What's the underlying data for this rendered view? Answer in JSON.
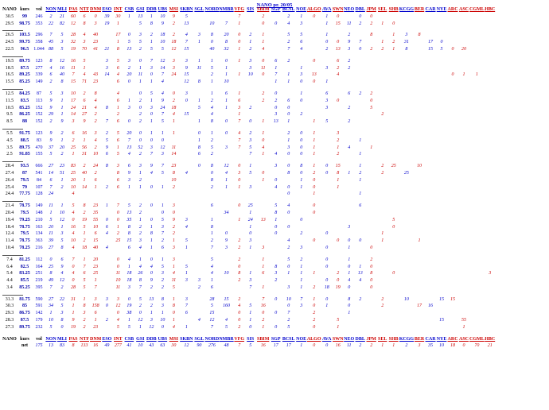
{
  "title": "NANO pr. 20/05",
  "headers": [
    "NANO",
    "kurs",
    "vol",
    "NON",
    "MLI",
    "PAS",
    "NTF",
    "DNM",
    "ESO",
    "INT",
    "CSB",
    "GSI",
    "DDB",
    "UBS",
    "MSI",
    "SKBN",
    "SGL",
    "NORD",
    "NMBR",
    "VFG",
    "SIS",
    "SBIM",
    "SGP",
    "BCSL",
    "NOE",
    "ALGO",
    "AVA",
    "SWN",
    "NEO",
    "DBL",
    "JPM",
    "SEL",
    "SHB",
    "KCGG",
    "BER",
    "CAR",
    "NYE",
    "ARC",
    "ASC",
    "CGML",
    "HBC"
  ],
  "header_colors": [
    "blk",
    "blk",
    "blk",
    "blue",
    "blue",
    "red",
    "red",
    "red",
    "blue",
    "red",
    "blue",
    "blue",
    "blue",
    "blue",
    "red",
    "blue",
    "blue",
    "blue",
    "blue",
    "red",
    "blue",
    "red",
    "blue",
    "blue",
    "blue",
    "red",
    "blue",
    "red",
    "blue",
    "blue",
    "red",
    "red",
    "red",
    "blue",
    "red",
    "blue",
    "blue",
    "red",
    "red",
    "red",
    "red"
  ],
  "groups": [
    [
      [
        "30.5",
        "99",
        "246",
        "2",
        "21",
        "60",
        "6",
        "0",
        "39",
        "30",
        "1",
        "13",
        "1",
        "10",
        "9",
        "5",
        "",
        "",
        "",
        "7",
        "",
        "2",
        "",
        "2",
        "1",
        "0",
        "1",
        "0",
        "",
        "0",
        "0"
      ],
      [
        "29.5",
        "98.75",
        "353",
        "22",
        "82",
        "12",
        "8",
        "3",
        "19",
        "1",
        "",
        "5",
        "8",
        "9",
        "2",
        "13",
        "",
        "10",
        "7",
        "1",
        "",
        "0",
        "0",
        "4",
        "3",
        "",
        "1",
        "15",
        "11",
        "2",
        "2",
        "1",
        "0"
      ]
    ],
    [
      [
        "26.5",
        "103.5",
        "296",
        "7",
        "5",
        "28",
        "4",
        "40",
        "",
        "17",
        "0",
        "3",
        "2",
        "18",
        "2",
        "4",
        "3",
        "8",
        "20",
        "0",
        "2",
        "1",
        "",
        "5",
        "5",
        "",
        "1",
        "",
        "2",
        "",
        "8",
        "",
        "1",
        "3",
        "8"
      ],
      [
        "24.5",
        "99.75",
        "358",
        "45",
        "3",
        "32",
        "3",
        "23",
        "",
        "1",
        "5",
        "5",
        "1",
        "10",
        "18",
        "7",
        "1",
        "0",
        "8",
        "0",
        "1",
        "1",
        "",
        "2",
        "6",
        "",
        "0",
        "0",
        "9",
        "7",
        "",
        "1",
        "2",
        "31",
        "",
        "17",
        "0"
      ],
      [
        "22.5",
        "96.5",
        "1.044",
        "88",
        "5",
        "19",
        "70",
        "41",
        "21",
        "8",
        "13",
        "2",
        "5",
        "5",
        "12",
        "15",
        "",
        "40",
        "32",
        "1",
        "2",
        "4",
        "",
        "7",
        "4",
        "",
        "2",
        "13",
        "3",
        "0",
        "2",
        "2",
        "1",
        "8",
        "",
        "15",
        "5",
        "0",
        "20"
      ]
    ],
    [
      [
        "19.5",
        "89.75",
        "123",
        "8",
        "12",
        "16",
        "5",
        "",
        "3",
        "5",
        "3",
        "0",
        "7",
        "12",
        "3",
        "3",
        "1",
        "1",
        "0",
        "1",
        "3",
        "0",
        "6",
        "2",
        "",
        "0",
        "",
        "6",
        "2"
      ],
      [
        "18.5",
        "87.5",
        "277",
        "4",
        "16",
        "11",
        "1",
        "",
        "3",
        "6",
        "2",
        "1",
        "3",
        "14",
        "3",
        "9",
        "11",
        "5",
        "1",
        "",
        "3",
        "11",
        "1",
        "",
        "1",
        "",
        "3",
        "2",
        "2"
      ],
      [
        "16.5",
        "89.25",
        "339",
        "6",
        "40",
        "7",
        "4",
        "43",
        "14",
        "4",
        "20",
        "11",
        "0",
        "7",
        "24",
        "15",
        "",
        "2",
        "1",
        "1",
        "10",
        "0",
        "7",
        "1",
        "3",
        "13",
        "",
        "4",
        "",
        "",
        "",
        "",
        "",
        "",
        "",
        "",
        "",
        "0",
        "1",
        "1"
      ],
      [
        "15.5",
        "85.25",
        "149",
        "2",
        "8",
        "15",
        "71",
        "23",
        "",
        "6",
        "0",
        "1",
        "1",
        "4",
        "",
        "12",
        "8",
        "1",
        "10",
        "",
        "",
        "",
        "1",
        "1",
        "0",
        "0",
        "1"
      ]
    ],
    [
      [
        "12.5",
        "84.25",
        "87",
        "5",
        "3",
        "10",
        "2",
        "8",
        "",
        "4",
        "",
        "0",
        "5",
        "4",
        "0",
        "3",
        "",
        "1",
        "6",
        "1",
        "",
        "2",
        "0",
        "",
        "1",
        "",
        "6",
        "",
        "6",
        "2",
        "2"
      ],
      [
        "11.5",
        "83.5",
        "113",
        "9",
        "1",
        "17",
        "6",
        "4",
        "",
        "6",
        "1",
        "2",
        "1",
        "9",
        "2",
        "0",
        "1",
        "2",
        "1",
        "6",
        "",
        "2",
        "2",
        "6",
        "0",
        "",
        "3",
        "0",
        "",
        "",
        "0"
      ],
      [
        "10.5",
        "85.25",
        "152",
        "9",
        "1",
        "24",
        "21",
        "4",
        "8",
        "1",
        "3",
        "0",
        "3",
        "24",
        "18",
        "",
        "5",
        "4",
        "1",
        "3",
        "2",
        "",
        "0",
        "0",
        "",
        "",
        "3",
        "",
        "2",
        "",
        "5"
      ],
      [
        "9.5",
        "86.25",
        "152",
        "29",
        "1",
        "14",
        "27",
        "2",
        "",
        "2",
        "",
        "2",
        "0",
        "7",
        "4",
        "15",
        "",
        "4",
        "",
        "1",
        "",
        "",
        "3",
        "0",
        "2",
        "",
        "",
        "",
        "",
        "",
        "",
        "2"
      ],
      [
        "8.5",
        "88",
        "152",
        "2",
        "9",
        "3",
        "9",
        "2",
        "7",
        "6",
        "0",
        "2",
        "1",
        "5",
        "1",
        "",
        "1",
        "8",
        "0",
        "7",
        "0",
        "1",
        "13",
        "1",
        "",
        "1",
        "5",
        "",
        "2"
      ]
    ],
    [
      [
        "5.5",
        "91.75",
        "123",
        "9",
        "2",
        "6",
        "16",
        "3",
        "2",
        "5",
        "20",
        "0",
        "1",
        "1",
        "1",
        "",
        "0",
        "1",
        "0",
        "4",
        "2",
        "1",
        "",
        "2",
        "0",
        "1",
        "",
        "3"
      ],
      [
        "4.5",
        "88.5",
        "83",
        "9",
        "1",
        "2",
        "1",
        "4",
        "5",
        "6",
        "7",
        "0",
        "0",
        "0",
        "",
        "",
        "1",
        "2",
        "",
        "7",
        "3",
        "0",
        "",
        "1",
        "0",
        "1",
        "",
        "2",
        "",
        "1"
      ],
      [
        "3.5",
        "89.75",
        "470",
        "37",
        "20",
        "25",
        "56",
        "2",
        "9",
        "1",
        "13",
        "52",
        "3",
        "12",
        "11",
        "",
        "8",
        "5",
        "3",
        "7",
        "5",
        "4",
        "",
        "3",
        "0",
        "1",
        "",
        "1",
        "4",
        "",
        "1"
      ],
      [
        "2.5",
        "91.85",
        "155",
        "5",
        "2",
        "1",
        "31",
        "10",
        "6",
        "5",
        "4",
        "2",
        "7",
        "3",
        "14",
        "",
        "6",
        "2",
        "",
        "",
        "7",
        "1",
        "4",
        "0",
        "0",
        "1",
        "",
        "2",
        "",
        "1"
      ]
    ],
    [
      [
        "28.4",
        "93.5",
        "666",
        "27",
        "23",
        "83",
        "2",
        "24",
        "8",
        "3",
        "6",
        "3",
        "9",
        "7",
        "23",
        "",
        "0",
        "8",
        "12",
        "0",
        "1",
        "",
        "3",
        "0",
        "8",
        "1",
        "0",
        "15",
        "",
        "1",
        "",
        "2",
        "25",
        "",
        "10"
      ],
      [
        "27.4",
        "87",
        "541",
        "14",
        "51",
        "25",
        "40",
        "2",
        "",
        "8",
        "9",
        "1",
        "4",
        "5",
        "8",
        "4",
        "",
        "0",
        "4",
        "3",
        "5",
        "0",
        "",
        "8",
        "0",
        "2",
        "0",
        "8",
        "1",
        "2",
        "",
        "2",
        "",
        "25"
      ],
      [
        "26.4",
        "79.5",
        "84",
        "6",
        "1",
        "20",
        "1",
        "6",
        "",
        "6",
        "3",
        "2",
        "",
        "",
        "10",
        "",
        "",
        "8",
        "1",
        "0",
        "",
        "1",
        "0",
        "",
        "1",
        "0",
        "",
        "1",
        "",
        "1"
      ],
      [
        "25.4",
        "79",
        "107",
        "7",
        "2",
        "10",
        "14",
        "1",
        "2",
        "6",
        "1",
        "1",
        "0",
        "1",
        "2",
        "",
        "",
        "2",
        "1",
        "1",
        "3",
        "",
        "4",
        "0",
        "1",
        "0",
        "",
        "1"
      ],
      [
        "24.4",
        "77.75",
        "128",
        "24",
        "",
        "4",
        "",
        "",
        "",
        "",
        "",
        "",
        "",
        "",
        "",
        "",
        "",
        "",
        "",
        "",
        "",
        "",
        "",
        "0",
        "",
        "1",
        "",
        "",
        "",
        "1"
      ]
    ],
    [
      [
        "21.4",
        "78.75",
        "149",
        "11",
        "1",
        "5",
        "8",
        "23",
        "1",
        "7",
        "5",
        "2",
        "0",
        "1",
        "3",
        "",
        "",
        "6",
        "",
        "0",
        "25",
        "",
        "5",
        "4",
        "",
        "0",
        "",
        "",
        "",
        "6"
      ],
      [
        "20.4",
        "79.5",
        "148",
        "1",
        "10",
        "4",
        "2",
        "35",
        "",
        "0",
        "13",
        "2",
        "",
        "0",
        "0",
        "",
        "",
        "",
        "34",
        "",
        "1",
        "",
        "8",
        "0",
        "",
        "0"
      ],
      [
        "19.4",
        "79.25",
        "210",
        "5",
        "12",
        "0",
        "19",
        "55",
        "0",
        "0",
        "35",
        "1",
        "0",
        "5",
        "9",
        "3",
        "",
        "1",
        "",
        "1",
        "24",
        "13",
        "1",
        "",
        "0",
        "",
        "",
        "",
        "",
        "",
        "",
        "",
        "5"
      ],
      [
        "18.4",
        "78.75",
        "163",
        "20",
        "1",
        "16",
        "5",
        "10",
        "6",
        "1",
        "8",
        "2",
        "1",
        "3",
        "2",
        "4",
        "",
        "8",
        "",
        "",
        "1",
        "",
        "0",
        "0",
        "",
        "",
        "",
        "",
        "3",
        "",
        "",
        "",
        "0"
      ],
      [
        "12.4",
        "79.5",
        "134",
        "11",
        "3",
        "4",
        "1",
        "6",
        "4",
        "2",
        "8",
        "2",
        "8",
        "7",
        "2",
        "",
        "",
        "1",
        "0",
        "",
        "0",
        "",
        "0",
        "",
        "2",
        "",
        "0",
        "",
        "",
        "",
        "",
        "1"
      ],
      [
        "11.4",
        "78.75",
        "363",
        "39",
        "5",
        "10",
        "2",
        "15",
        "",
        "25",
        "15",
        "3",
        "1",
        "2",
        "1",
        "5",
        "",
        "2",
        "9",
        "2",
        "3",
        "",
        "",
        "4",
        "",
        "0",
        "",
        "0",
        "0",
        "0",
        "",
        "1",
        "",
        "",
        "1"
      ],
      [
        "10.4",
        "78.25",
        "216",
        "27",
        "8",
        "4",
        "18",
        "40",
        "4",
        "",
        "6",
        "4",
        "1",
        "6",
        "3",
        "1",
        "",
        "7",
        "3",
        "2",
        "1",
        "3",
        "",
        "2",
        "3",
        "",
        "0",
        "",
        "1",
        "",
        "0"
      ]
    ],
    [
      [
        "7.4",
        "81.25",
        "112",
        "0",
        "6",
        "7",
        "1",
        "20",
        "",
        "0",
        "4",
        "1",
        "0",
        "1",
        "3",
        "",
        "",
        "5",
        "",
        "2",
        "",
        "1",
        "",
        "5",
        "2",
        "",
        "0",
        "",
        "1",
        "",
        "2"
      ],
      [
        "6.4",
        "82.5",
        "164",
        "25",
        "9",
        "0",
        "7",
        "23",
        "",
        "0",
        "1",
        "4",
        "4",
        "5",
        "1",
        "5",
        "",
        "4",
        "",
        "0",
        "",
        "1",
        "8",
        "0",
        "1",
        "",
        "0",
        "",
        "0",
        "1",
        "0"
      ],
      [
        "5.4",
        "83.25",
        "251",
        "8",
        "4",
        "4",
        "6",
        "25",
        "",
        "11",
        "18",
        "26",
        "0",
        "3",
        "4",
        "1",
        "",
        "4",
        "10",
        "8",
        "1",
        "6",
        "3",
        "1",
        "1",
        "1",
        "",
        "2",
        "1",
        "13",
        "8",
        "",
        "0",
        "",
        "",
        "",
        "",
        "",
        "",
        "",
        "3"
      ],
      [
        "4.4",
        "85.5",
        "219",
        "49",
        "12",
        "0",
        "5",
        "1",
        "",
        "10",
        "18",
        "8",
        "9",
        "2",
        "11",
        "3",
        "3",
        "1",
        "",
        "2",
        "3",
        "",
        "2",
        "",
        "1",
        "",
        "0",
        "0",
        "4",
        "4",
        "0"
      ],
      [
        "3.4",
        "85.25",
        "395",
        "7",
        "2",
        "28",
        "5",
        "7",
        "",
        "11",
        "3",
        "7",
        "2",
        "2",
        "5",
        "",
        "2",
        "6",
        "",
        "",
        "7",
        "1",
        "",
        "3",
        "1",
        "2",
        "18",
        "19",
        "0",
        "",
        "0"
      ]
    ],
    [
      [
        "31.3",
        "81.75",
        "590",
        "27",
        "22",
        "31",
        "1",
        "3",
        "3",
        "3",
        "0",
        "5",
        "13",
        "8",
        "1",
        "3",
        "",
        "28",
        "15",
        "2",
        "",
        "7",
        "0",
        "10",
        "7",
        "1",
        "0",
        "",
        "8",
        "2",
        "",
        "2",
        "",
        "10",
        "",
        "",
        "15",
        "15"
      ],
      [
        "30.3",
        "85",
        "591",
        "34",
        "5",
        "1",
        "8",
        "158",
        "0",
        "12",
        "19",
        "2",
        "2",
        "3",
        "8",
        "7",
        "",
        "5",
        "160",
        "4",
        "5",
        "16",
        "",
        "0",
        "3",
        "0",
        "1",
        "",
        "0",
        "",
        "",
        "2",
        "",
        "",
        "17",
        "16"
      ],
      [
        "29.3",
        "86.75",
        "142",
        "1",
        "3",
        "1",
        "3",
        "6",
        "",
        "0",
        "38",
        "0",
        "1",
        "1",
        "0",
        "6",
        "",
        "15",
        "",
        "0",
        "1",
        "0",
        "0",
        "7",
        "",
        "2",
        "",
        "",
        "1"
      ],
      [
        "28.3",
        "87.5",
        "179",
        "10",
        "8",
        "9",
        "2",
        "1",
        "2",
        "4",
        "1",
        "12",
        "3",
        "10",
        "1",
        "",
        "4",
        "12",
        "4",
        "0",
        "1",
        "2",
        "",
        "2",
        "",
        "2",
        "",
        "5",
        "",
        "",
        "",
        "",
        "",
        "",
        "",
        "",
        "15",
        "",
        "55"
      ],
      [
        "27.3",
        "89.75",
        "232",
        "5",
        "0",
        "19",
        "2",
        "23",
        "",
        "5",
        "5",
        "1",
        "12",
        "0",
        "4",
        "1",
        "",
        "7",
        "5",
        "2",
        "0",
        "1",
        "0",
        "5",
        "",
        "0",
        "",
        "1",
        "",
        "",
        "",
        "",
        "",
        "",
        "",
        "",
        "",
        "",
        "1"
      ]
    ]
  ],
  "footer": {
    "label": "net",
    "values": [
      "175",
      "13",
      "83",
      "8",
      "133",
      "16",
      "49",
      "277",
      "41",
      "10",
      "43",
      "63",
      "30",
      "12",
      "90",
      "276",
      "48",
      "7",
      "5",
      "16",
      "17",
      "17",
      "1",
      "0",
      "0",
      "16",
      "11",
      "2",
      "2",
      "1",
      "1",
      "2",
      "3",
      "35",
      "10",
      "18",
      "0",
      "70",
      "21",
      "2",
      "2"
    ]
  },
  "colors": {
    "blue": "#0000cc",
    "red": "#cc0000"
  }
}
